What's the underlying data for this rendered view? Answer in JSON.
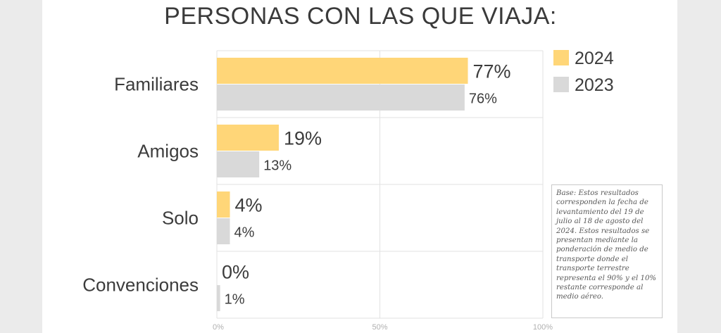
{
  "chart_data": {
    "type": "bar",
    "orientation": "horizontal",
    "title": "PERSONAS CON LAS QUE VIAJA:",
    "categories": [
      "Familiares",
      "Amigos",
      "Solo",
      "Convenciones"
    ],
    "series": [
      {
        "name": "2024",
        "values": [
          77,
          19,
          4,
          0
        ],
        "labels": [
          "77%",
          "19%",
          "4%",
          "0%"
        ]
      },
      {
        "name": "2023",
        "values": [
          76,
          13,
          4,
          1
        ],
        "labels": [
          "76%",
          "13%",
          "4%",
          "1%"
        ]
      }
    ],
    "xlim": [
      0,
      100
    ],
    "x_ticks": [
      0,
      50,
      100
    ],
    "x_tick_labels": [
      "0%",
      "50%",
      "100%"
    ],
    "grid": true,
    "legend_position": "right",
    "colors": {
      "2024": "#ffd678",
      "2023": "#d9d9d9"
    }
  },
  "note": "Base: Estos resultados corresponden la fecha de levantamiento del 19 de julio al 18 de agosto del 2024. Estos resultados se presentan mediante la ponderación de medio de transporte donde el transporte terrestre representa el 90% y el 10% restante corresponde al medio aéreo."
}
